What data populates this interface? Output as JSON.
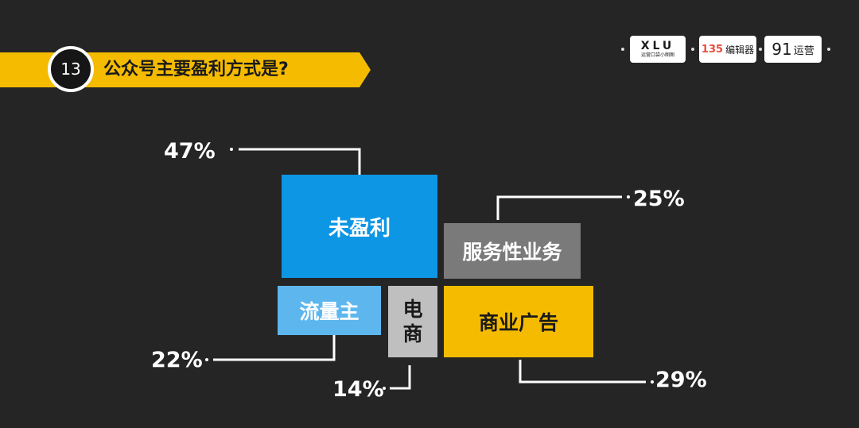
{
  "header": {
    "number": "13",
    "title": "公众号主要盈利方式是?"
  },
  "logos": {
    "xlu": {
      "text": "XLU",
      "sub": "运营口袋小图图"
    },
    "e135": {
      "num": "135",
      "text": "编辑器"
    },
    "y91": {
      "num": "91",
      "text": "运营"
    }
  },
  "colors": {
    "background": "#252525",
    "accent": "#f5bb00",
    "blue": "#0d96e4",
    "light_blue": "#5db7ee",
    "gray": "#7a7a7a",
    "light_gray": "#bfbfbf",
    "yellow": "#f5bb00"
  },
  "chart_data": {
    "type": "treemap",
    "title": "公众号主要盈利方式是?",
    "items": [
      {
        "label": "未盈利",
        "value": 47,
        "value_label": "47%",
        "color": "#0d96e4"
      },
      {
        "label": "服务性业务",
        "value": 25,
        "value_label": "25%",
        "color": "#7a7a7a"
      },
      {
        "label": "流量主",
        "value": 22,
        "value_label": "22%",
        "color": "#5db7ee"
      },
      {
        "label": "电商",
        "value": 14,
        "value_label": "14%",
        "color": "#bfbfbf"
      },
      {
        "label": "商业广告",
        "value": 29,
        "value_label": "29%",
        "color": "#f5bb00"
      }
    ]
  }
}
